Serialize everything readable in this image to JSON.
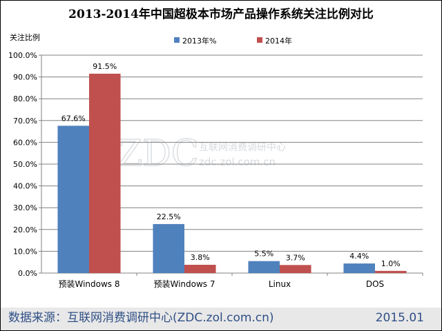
{
  "chart_data": {
    "type": "bar",
    "title": "2013-2014年中国超极本市场产品操作系统关注比例对比",
    "ylabel": "关注比例",
    "xlabel": "",
    "categories": [
      "预装Windows 8",
      "预装Windows 7",
      "Linux",
      "DOS"
    ],
    "series": [
      {
        "name": "2013年%",
        "values": [
          67.6,
          22.5,
          5.5,
          4.4
        ],
        "labels": [
          "67.6%",
          "22.5%",
          "5.5%",
          "4.4%"
        ],
        "color": "#4f81bd"
      },
      {
        "name": "2014年",
        "values": [
          91.5,
          3.8,
          3.7,
          1.0
        ],
        "labels": [
          "91.5%",
          "3.8%",
          "3.7%",
          "1.0%"
        ],
        "color": "#c0504d"
      }
    ],
    "ylim": [
      0,
      100
    ],
    "yticks": [
      "0.0%",
      "10.0%",
      "20.0%",
      "30.0%",
      "40.0%",
      "50.0%",
      "60.0%",
      "70.0%",
      "80.0%",
      "90.0%",
      "100.0%"
    ],
    "grid": true,
    "legend": "top-center"
  },
  "watermark": {
    "logo": "ZDC",
    "text": "互联网消费调研中心",
    "url": "zdc.zol.com.cn"
  },
  "footer": {
    "source": "数据来源：互联网消费调研中心(ZDC.zol.com.cn)",
    "date": "2015.01"
  }
}
